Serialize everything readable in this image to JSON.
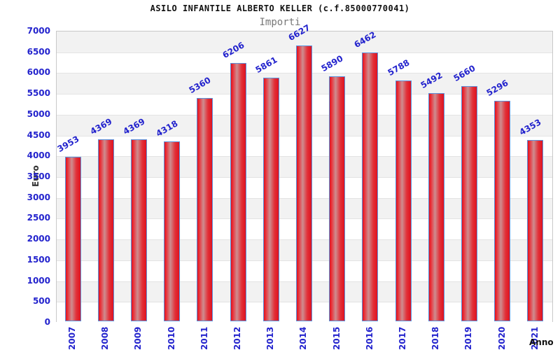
{
  "header": {
    "title": "ASILO INFANTILE ALBERTO KELLER (c.f.85000770041)",
    "subtitle": "Importi"
  },
  "chart_data": {
    "type": "bar",
    "title": "ASILO INFANTILE ALBERTO KELLER (c.f.85000770041)",
    "subtitle": "Importi",
    "xlabel": "Anno",
    "ylabel": "Euro",
    "categories": [
      "2007",
      "2008",
      "2009",
      "2010",
      "2011",
      "2012",
      "2013",
      "2014",
      "2015",
      "2016",
      "2017",
      "2018",
      "2019",
      "2020",
      "2021"
    ],
    "values": [
      3953,
      4369,
      4369,
      4318,
      5360,
      6206,
      5861,
      6627,
      5890,
      6462,
      5788,
      5492,
      5660,
      5296,
      4353
    ],
    "ylim": [
      0,
      7000
    ],
    "ytick_step": 500,
    "grid": "alternating-horizontal-bands",
    "legend_position": "none",
    "colors": {
      "tick_label": "#2323cd",
      "value_label": "#2323cd",
      "bar_face_edge": "#de1220",
      "bar_face_highlight": "#ce8d90",
      "bar_border": "#5a93dd",
      "band_gray": "#f2f2f2",
      "band_white": "#ffffff",
      "plot_border": "#c8c8c8",
      "title": "#111111",
      "subtitle": "#787878",
      "axis_title": "#333333"
    }
  }
}
